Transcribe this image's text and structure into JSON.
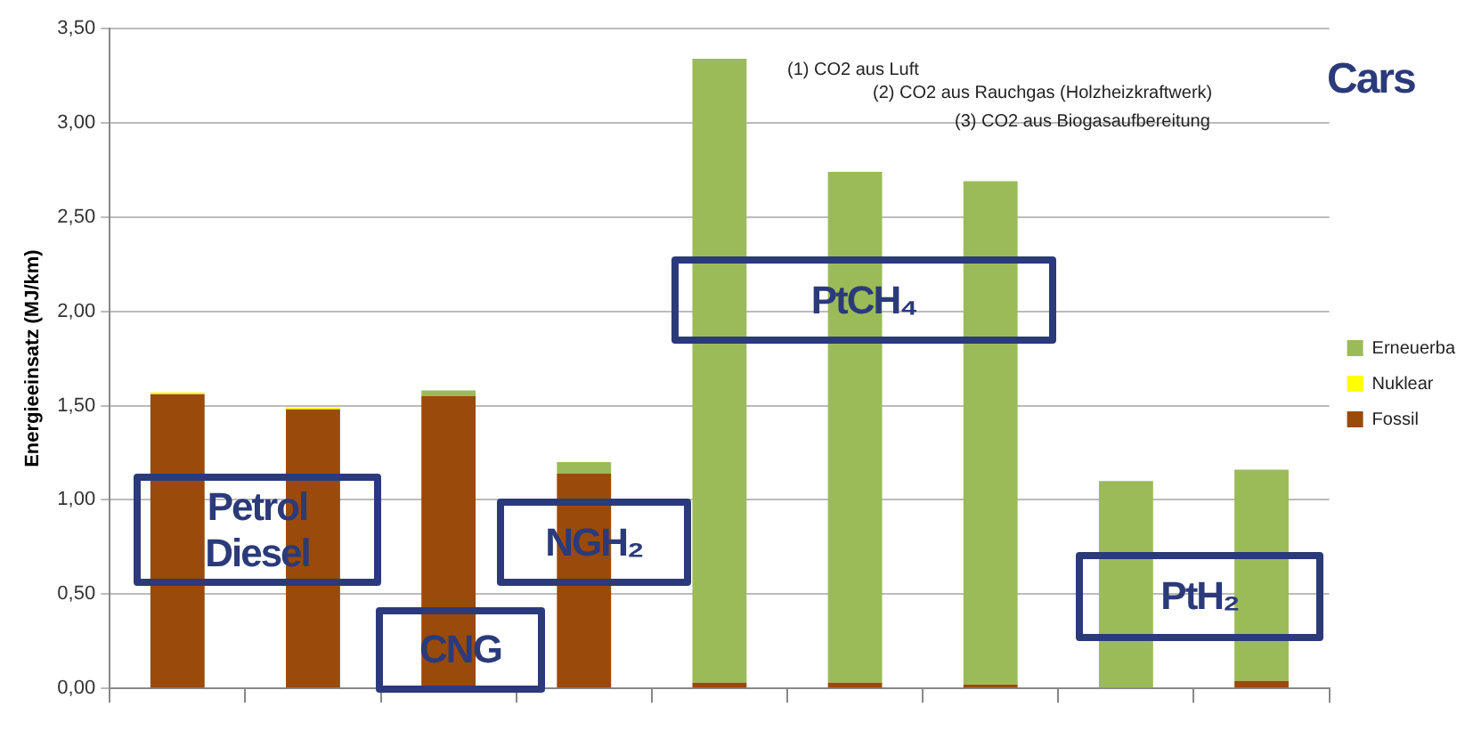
{
  "chart_data": {
    "type": "bar",
    "stacked": true,
    "ylabel": "Energieeinsatz (MJ/km)",
    "categories": [
      null,
      null,
      null,
      null,
      null,
      null,
      null,
      null,
      null
    ],
    "series": [
      {
        "name": "Fossil",
        "color": "#9a4a0a",
        "values": [
          1.56,
          1.48,
          1.55,
          1.14,
          0.03,
          0.03,
          0.02,
          0,
          0.04
        ]
      },
      {
        "name": "Nuklear",
        "color": "#ffff00",
        "values": [
          0.01,
          0.01,
          0,
          0,
          0,
          0,
          0,
          0,
          0
        ]
      },
      {
        "name": "Erneuerba",
        "color": "#9bbb59",
        "values": [
          0,
          0,
          0.03,
          0.06,
          3.31,
          2.71,
          2.67,
          1.1,
          1.12
        ]
      }
    ],
    "ylim": [
      0,
      3.5
    ],
    "yticks": [
      {
        "value": 0,
        "label": "0,00"
      },
      {
        "value": 0.5,
        "label": "0,50"
      },
      {
        "value": 1,
        "label": "1,00"
      },
      {
        "value": 1.5,
        "label": "1,50"
      },
      {
        "value": 2,
        "label": "2,00"
      },
      {
        "value": 2.5,
        "label": "2,50"
      },
      {
        "value": 3,
        "label": "3,00"
      },
      {
        "value": 3.5,
        "label": "3,50"
      }
    ],
    "grid": "y",
    "legend": "right",
    "annotations": [
      "(1) CO2 aus Luft",
      "(2) CO2 aus Rauchgas (Holzheizkraftwerk)",
      "(3) CO2 aus Biogasaufbereitung",
      "Cars",
      "Petrol\nDiesel",
      "CNG",
      "NGH₂",
      "PtCH₄",
      "PtH₂"
    ]
  }
}
